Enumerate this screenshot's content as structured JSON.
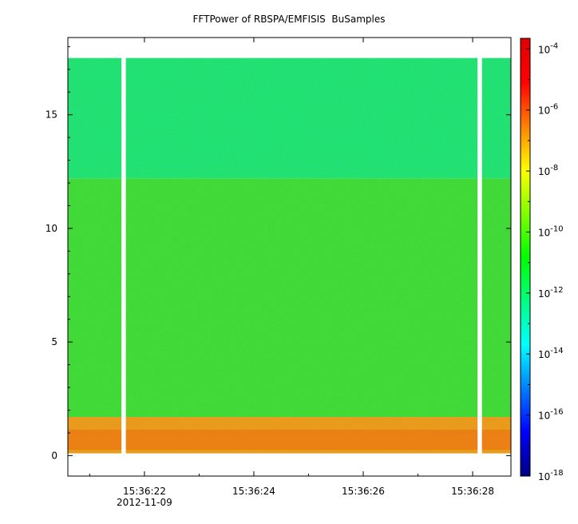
{
  "chart_data": {
    "type": "heatmap",
    "title": "FFTPower of RBSPA/EMFISIS  BuSamples",
    "xlabel": "",
    "ylabel": "",
    "x_tick_labels": [
      "15:36:22",
      "15:36:24",
      "15:36:26",
      "15:36:28"
    ],
    "x_tick_values_s": [
      22,
      24,
      26,
      28
    ],
    "x_date_label": "2012-11-09",
    "xlim_s": [
      20.6,
      28.7
    ],
    "y_tick_labels": [
      "0",
      "5",
      "10",
      "15"
    ],
    "y_tick_values": [
      0,
      5,
      10,
      15
    ],
    "ylim": [
      -0.9,
      18.4
    ],
    "data_extent": {
      "x_s": [
        20.6,
        28.7
      ],
      "y": [
        0.1,
        17.5
      ]
    },
    "data_gaps_s": [
      [
        21.58,
        21.66
      ],
      [
        28.09,
        28.17
      ]
    ],
    "bands": [
      {
        "y": [
          0.1,
          1.7
        ],
        "log10_power": -7.6,
        "color": "#f2a11c"
      },
      {
        "y": [
          1.7,
          12.2
        ],
        "log10_power": -10.3,
        "color": "#44e23a"
      },
      {
        "y": [
          12.2,
          17.5
        ],
        "log10_power": -11.6,
        "color": "#22ea78"
      }
    ],
    "colorbar": {
      "scale": "log",
      "range_exponents": [
        -18,
        -3.65
      ],
      "tick_exponents": [
        "-4",
        "-6",
        "-8",
        "-10",
        "-12",
        "-14",
        "-16",
        "-18"
      ],
      "tick_base": "10",
      "colormap": [
        "#00007f",
        "#0000ff",
        "#007fff",
        "#00ffff",
        "#00ff80",
        "#00ff00",
        "#80ff00",
        "#ffff00",
        "#ff8000",
        "#ff0000",
        "#e00000"
      ]
    },
    "grid": false,
    "legend": "none"
  }
}
